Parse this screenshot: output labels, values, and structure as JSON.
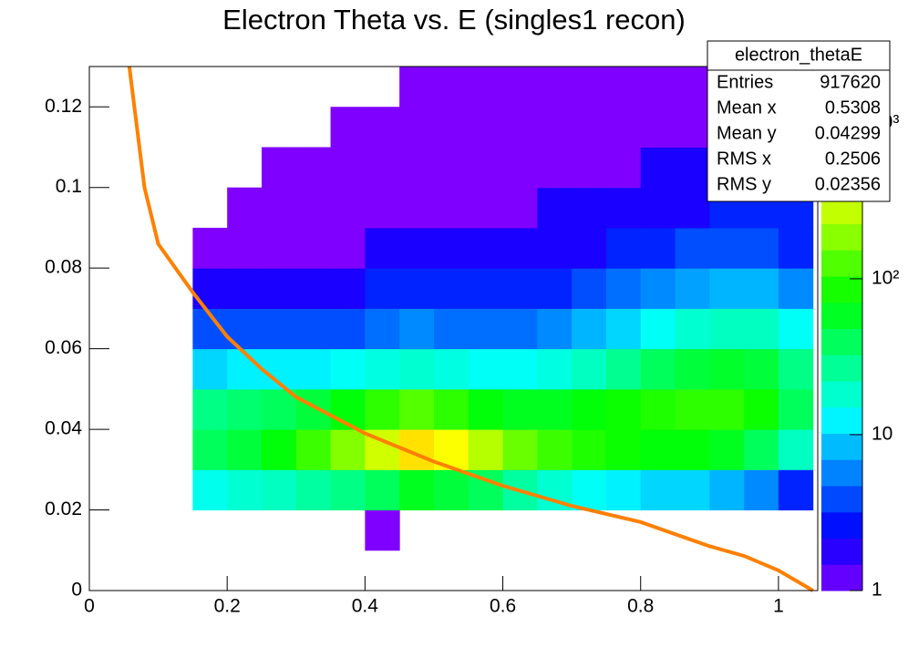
{
  "chart_data": {
    "type": "heatmap",
    "title": "Electron Theta vs. E (singles1 recon)",
    "xlim": [
      0,
      1.057
    ],
    "ylim": [
      0,
      0.13
    ],
    "xticks": [
      0,
      0.2,
      0.4,
      0.6,
      0.8,
      1
    ],
    "yticks": [
      0,
      0.02,
      0.04,
      0.06,
      0.08,
      0.1,
      0.12
    ],
    "zlim": [
      1,
      2300
    ],
    "zlog": true,
    "zticks": [
      1,
      10,
      {
        "value": 100,
        "label": "10²"
      },
      {
        "value": 1000,
        "label": "10³"
      }
    ],
    "x_bins": [
      0.15,
      0.2,
      0.25,
      0.3,
      0.35,
      0.4,
      0.45,
      0.5,
      0.55,
      0.6,
      0.65,
      0.7,
      0.75,
      0.8,
      0.85,
      0.9,
      0.95,
      1.0,
      1.05
    ],
    "y_bins": [
      0,
      0.01,
      0.02,
      0.03,
      0.04,
      0.05,
      0.06,
      0.07,
      0.08,
      0.09,
      0.1,
      0.11,
      0.12,
      0.13
    ],
    "z": [
      [
        null,
        null,
        null,
        null,
        null,
        null,
        null,
        null,
        null,
        null,
        null,
        null,
        null,
        null,
        null,
        null,
        null,
        null
      ],
      [
        null,
        null,
        null,
        null,
        null,
        1,
        null,
        null,
        null,
        null,
        null,
        null,
        null,
        null,
        null,
        null,
        null,
        null
      ],
      [
        15,
        18,
        20,
        25,
        30,
        40,
        60,
        50,
        40,
        25,
        18,
        14,
        12,
        10,
        10,
        8,
        6,
        3
      ],
      [
        40,
        50,
        70,
        110,
        180,
        300,
        500,
        400,
        250,
        150,
        110,
        90,
        80,
        70,
        70,
        60,
        40,
        20
      ],
      [
        30,
        35,
        40,
        50,
        70,
        100,
        130,
        100,
        70,
        60,
        60,
        70,
        80,
        90,
        100,
        100,
        80,
        40
      ],
      [
        10,
        12,
        12,
        12,
        14,
        16,
        18,
        16,
        14,
        14,
        16,
        20,
        28,
        40,
        50,
        55,
        50,
        30
      ],
      [
        4,
        4,
        4,
        4,
        4,
        5,
        6,
        5,
        5,
        5,
        6,
        8,
        10,
        14,
        18,
        20,
        20,
        14
      ],
      [
        2,
        2,
        2,
        2,
        2,
        3,
        3,
        3,
        3,
        3,
        3,
        4,
        5,
        6,
        7,
        8,
        8,
        6
      ],
      [
        1,
        1,
        1,
        1,
        1,
        2,
        2,
        2,
        2,
        2,
        2,
        2,
        3,
        3,
        4,
        4,
        4,
        3
      ],
      [
        null,
        1,
        1,
        1,
        1,
        1,
        1,
        1,
        1,
        1,
        2,
        2,
        2,
        2,
        2,
        3,
        3,
        3
      ],
      [
        null,
        null,
        1,
        1,
        1,
        1,
        1,
        1,
        1,
        1,
        1,
        1,
        1,
        2,
        2,
        2,
        2,
        2
      ],
      [
        null,
        null,
        null,
        null,
        1,
        1,
        1,
        1,
        1,
        1,
        1,
        1,
        1,
        1,
        1,
        1,
        2,
        2
      ],
      [
        null,
        null,
        null,
        null,
        null,
        null,
        1,
        1,
        1,
        1,
        1,
        1,
        1,
        1,
        1,
        1,
        1,
        1
      ]
    ],
    "curve": {
      "color": "#ff8000",
      "x": [
        0.058,
        0.08,
        0.1,
        0.15,
        0.2,
        0.25,
        0.3,
        0.4,
        0.5,
        0.6,
        0.7,
        0.8,
        0.9,
        0.95,
        1.0,
        1.05
      ],
      "y": [
        0.13,
        0.1,
        0.086,
        0.074,
        0.063,
        0.055,
        0.048,
        0.039,
        0.032,
        0.026,
        0.021,
        0.017,
        0.011,
        0.0086,
        0.005,
        0
      ]
    },
    "stats": {
      "title": "electron_thetaE",
      "rows": [
        {
          "label": "Entries",
          "value": 917620
        },
        {
          "label": "Mean x",
          "value": 0.5308
        },
        {
          "label": "Mean y",
          "value": 0.04299
        },
        {
          "label": "RMS x",
          "value": 0.2506
        },
        {
          "label": "RMS y",
          "value": 0.02356
        }
      ]
    }
  }
}
